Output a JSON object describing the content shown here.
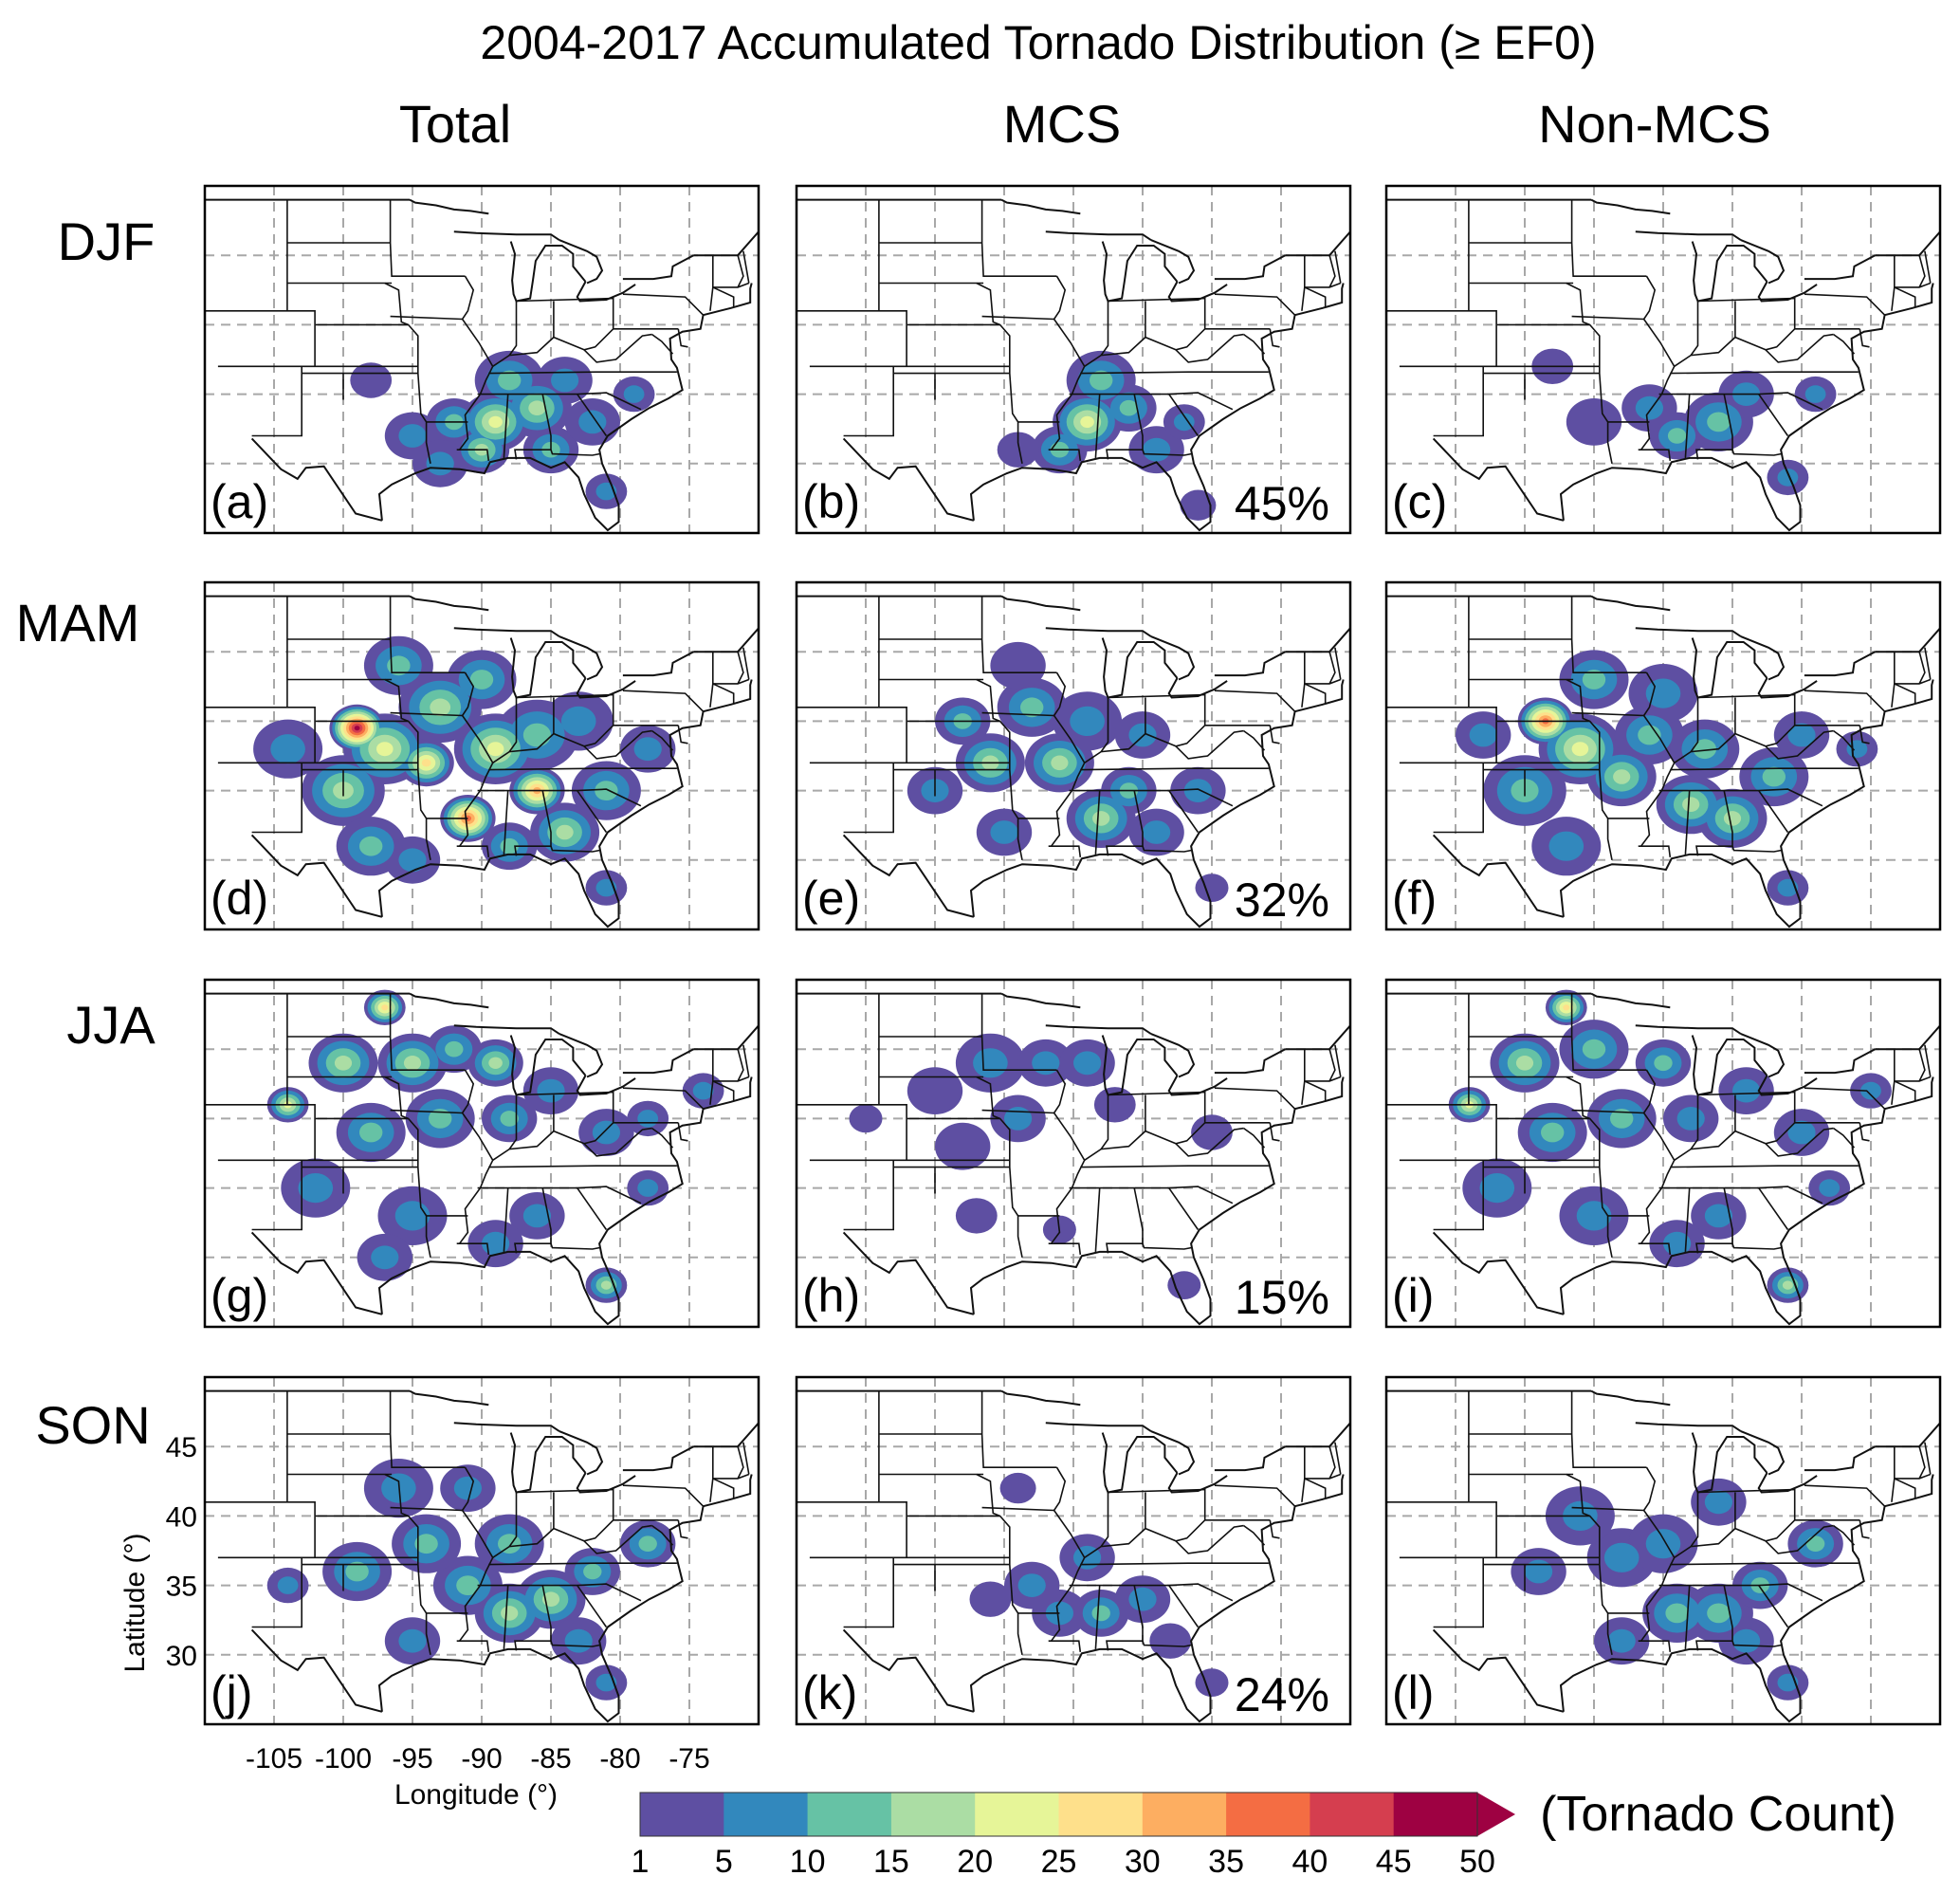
{
  "title": "2004-2017 Accumulated Tornado Distribution (≥ EF0)",
  "columns": [
    "Total",
    "MCS",
    "Non-MCS"
  ],
  "rows": [
    "DJF",
    "MAM",
    "JJA",
    "SON"
  ],
  "panels": [
    {
      "label": "(a)",
      "season": "DJF",
      "category": "Total",
      "pct": ""
    },
    {
      "label": "(b)",
      "season": "DJF",
      "category": "MCS",
      "pct": "45%"
    },
    {
      "label": "(c)",
      "season": "DJF",
      "category": "Non-MCS",
      "pct": ""
    },
    {
      "label": "(d)",
      "season": "MAM",
      "category": "Total",
      "pct": ""
    },
    {
      "label": "(e)",
      "season": "MAM",
      "category": "MCS",
      "pct": "32%"
    },
    {
      "label": "(f)",
      "season": "MAM",
      "category": "Non-MCS",
      "pct": ""
    },
    {
      "label": "(g)",
      "season": "JJA",
      "category": "Total",
      "pct": ""
    },
    {
      "label": "(h)",
      "season": "JJA",
      "category": "MCS",
      "pct": "15%"
    },
    {
      "label": "(i)",
      "season": "JJA",
      "category": "Non-MCS",
      "pct": ""
    },
    {
      "label": "(j)",
      "season": "SON",
      "category": "Total",
      "pct": ""
    },
    {
      "label": "(k)",
      "season": "SON",
      "category": "MCS",
      "pct": "24%"
    },
    {
      "label": "(l)",
      "season": "SON",
      "category": "Non-MCS",
      "pct": ""
    }
  ],
  "chart_data": {
    "type": "heatmap",
    "title": "2004-2017 Accumulated Tornado Distribution (≥ EF0)",
    "xlabel": "Longitude (°)",
    "ylabel": "Latitude (°)",
    "x_ticks": [
      -105,
      -100,
      -95,
      -90,
      -85,
      -80,
      -75
    ],
    "y_ticks": [
      45,
      40,
      35,
      30
    ],
    "x_range": [
      -110,
      -70
    ],
    "y_range": [
      25,
      50
    ],
    "grid": true,
    "colorbar": {
      "label": "(Tornado Count)",
      "levels": [
        1,
        5,
        10,
        15,
        20,
        25,
        30,
        35,
        40,
        45,
        50
      ],
      "colors": [
        "#5e4fa2",
        "#3288bd",
        "#66c2a5",
        "#abdda4",
        "#e6f598",
        "#fee08b",
        "#fdae61",
        "#f46d43",
        "#d53e4f",
        "#9e0142"
      ],
      "extend": "max"
    },
    "mcs_fraction_percent": {
      "DJF": 45,
      "MAM": 32,
      "JJA": 15,
      "SON": 24
    },
    "hotspots": [
      {
        "panel": "(a)",
        "blobs": [
          [
            -89,
            33,
            2.5,
            5
          ],
          [
            -86,
            34,
            2.5,
            4
          ],
          [
            -90,
            31,
            2,
            4
          ],
          [
            -85,
            31,
            2,
            3
          ],
          [
            -92,
            33,
            2,
            3
          ],
          [
            -88,
            36,
            2.5,
            3
          ],
          [
            -82,
            33,
            2,
            2
          ],
          [
            -95,
            32,
            2,
            2
          ],
          [
            -81,
            28,
            1.5,
            2
          ],
          [
            -93,
            30,
            2,
            2
          ],
          [
            -84,
            36,
            2,
            2
          ],
          [
            -79,
            35,
            1.5,
            2
          ],
          [
            -98,
            36,
            1.5,
            1
          ]
        ]
      },
      {
        "panel": "(b)",
        "blobs": [
          [
            -89,
            33,
            2.5,
            5
          ],
          [
            -86,
            34,
            2,
            3
          ],
          [
            -91,
            31,
            2,
            3
          ],
          [
            -88,
            36,
            2.5,
            3
          ],
          [
            -84,
            31,
            2,
            2
          ],
          [
            -82,
            33,
            1.5,
            2
          ],
          [
            -94,
            31,
            1.5,
            1
          ],
          [
            -81,
            27,
            1.3,
            1
          ]
        ]
      },
      {
        "panel": "(c)",
        "blobs": [
          [
            -86,
            33,
            2.5,
            3
          ],
          [
            -89,
            32,
            2,
            3
          ],
          [
            -84,
            35,
            2,
            2
          ],
          [
            -91,
            34,
            2,
            2
          ],
          [
            -81,
            29,
            1.5,
            2
          ],
          [
            -79,
            35,
            1.5,
            2
          ],
          [
            -95,
            33,
            2,
            1
          ],
          [
            -98,
            37,
            1.5,
            1
          ]
        ]
      },
      {
        "panel": "(d)",
        "blobs": [
          [
            -99,
            39.5,
            2,
            10
          ],
          [
            -97,
            38,
            3,
            5
          ],
          [
            -94,
            37,
            2,
            6
          ],
          [
            -91,
            33,
            2,
            8
          ],
          [
            -86,
            35,
            2,
            7
          ],
          [
            -89,
            38,
            3,
            5
          ],
          [
            -93,
            41,
            3,
            4
          ],
          [
            -100,
            35,
            3,
            4
          ],
          [
            -84,
            32,
            2.5,
            4
          ],
          [
            -86,
            39,
            3,
            3
          ],
          [
            -81,
            35,
            2.5,
            3
          ],
          [
            -96,
            44,
            2.5,
            3
          ],
          [
            -90,
            43,
            2.5,
            3
          ],
          [
            -83,
            40,
            2.5,
            2
          ],
          [
            -98,
            31,
            2.5,
            3
          ],
          [
            -104,
            38,
            2.5,
            2
          ],
          [
            -95,
            30,
            2,
            2
          ],
          [
            -78,
            38,
            2,
            2
          ],
          [
            -81,
            28,
            1.5,
            2
          ],
          [
            -88,
            31,
            2,
            3
          ]
        ]
      },
      {
        "panel": "(e)",
        "blobs": [
          [
            -96,
            37,
            2.5,
            4
          ],
          [
            -91,
            37,
            2.5,
            4
          ],
          [
            -88,
            33,
            2.5,
            4
          ],
          [
            -86,
            35,
            2,
            3
          ],
          [
            -93,
            41,
            2.5,
            3
          ],
          [
            -98,
            40,
            2,
            3
          ],
          [
            -89,
            40,
            2.5,
            2
          ],
          [
            -84,
            32,
            2,
            2
          ],
          [
            -81,
            35,
            2,
            2
          ],
          [
            -100,
            35,
            2,
            2
          ],
          [
            -95,
            32,
            2,
            2
          ],
          [
            -85,
            39,
            2,
            2
          ],
          [
            -94,
            44,
            2,
            1
          ],
          [
            -80,
            28,
            1.2,
            1
          ]
        ]
      },
      {
        "panel": "(f)",
        "blobs": [
          [
            -98.5,
            40,
            2,
            8
          ],
          [
            -96,
            38,
            3,
            5
          ],
          [
            -93,
            36,
            2.5,
            4
          ],
          [
            -88,
            34,
            2.5,
            4
          ],
          [
            -85,
            33,
            2.5,
            4
          ],
          [
            -91,
            39,
            2.5,
            3
          ],
          [
            -100,
            35,
            3,
            3
          ],
          [
            -95,
            43,
            2.5,
            3
          ],
          [
            -87,
            38,
            2.5,
            3
          ],
          [
            -82,
            36,
            2.5,
            3
          ],
          [
            -90,
            42,
            2.5,
            2
          ],
          [
            -103,
            39,
            2,
            2
          ],
          [
            -97,
            31,
            2.5,
            2
          ],
          [
            -80,
            39,
            2,
            2
          ],
          [
            -81,
            28,
            1.5,
            2
          ],
          [
            -76,
            38,
            1.5,
            2
          ]
        ]
      },
      {
        "panel": "(g)",
        "blobs": [
          [
            -97,
            48,
            1.5,
            6
          ],
          [
            -104,
            41,
            1.5,
            5
          ],
          [
            -100,
            44,
            2.5,
            4
          ],
          [
            -95,
            44,
            2.5,
            4
          ],
          [
            -92,
            45,
            2,
            3
          ],
          [
            -89,
            44,
            2,
            4
          ],
          [
            -98,
            39,
            2.5,
            3
          ],
          [
            -93,
            40,
            2.5,
            3
          ],
          [
            -88,
            40,
            2,
            3
          ],
          [
            -85,
            42,
            2,
            2
          ],
          [
            -81,
            39,
            2,
            2
          ],
          [
            -78,
            40,
            1.5,
            2
          ],
          [
            -74,
            42,
            1.5,
            2
          ],
          [
            -81,
            28,
            1.5,
            4
          ],
          [
            -95,
            33,
            2.5,
            2
          ],
          [
            -102,
            35,
            2.5,
            2
          ],
          [
            -86,
            33,
            2,
            2
          ],
          [
            -89,
            31,
            2,
            2
          ],
          [
            -97,
            30,
            2,
            2
          ],
          [
            -78,
            35,
            1.5,
            2
          ]
        ]
      },
      {
        "panel": "(h)",
        "blobs": [
          [
            -96,
            44,
            2.5,
            2
          ],
          [
            -92,
            44,
            2,
            2
          ],
          [
            -100,
            42,
            2,
            1
          ],
          [
            -89,
            44,
            2,
            2
          ],
          [
            -94,
            40,
            2,
            2
          ],
          [
            -98,
            38,
            2,
            1
          ],
          [
            -87,
            41,
            1.5,
            1
          ],
          [
            -105,
            40,
            1.2,
            1
          ],
          [
            -91,
            32,
            1.2,
            1
          ],
          [
            -80,
            39,
            1.5,
            1
          ],
          [
            -97,
            33,
            1.5,
            1
          ],
          [
            -82,
            28,
            1.2,
            1
          ]
        ]
      },
      {
        "panel": "(i)",
        "blobs": [
          [
            -97,
            48,
            1.5,
            6
          ],
          [
            -104,
            41,
            1.5,
            5
          ],
          [
            -100,
            44,
            2.5,
            4
          ],
          [
            -95,
            45,
            2.5,
            3
          ],
          [
            -90,
            44,
            2,
            3
          ],
          [
            -98,
            39,
            2.5,
            3
          ],
          [
            -93,
            40,
            2.5,
            3
          ],
          [
            -88,
            40,
            2,
            2
          ],
          [
            -84,
            42,
            2,
            2
          ],
          [
            -80,
            39,
            2,
            2
          ],
          [
            -75,
            42,
            1.5,
            2
          ],
          [
            -81,
            28,
            1.5,
            4
          ],
          [
            -95,
            33,
            2.5,
            2
          ],
          [
            -102,
            35,
            2.5,
            2
          ],
          [
            -86,
            33,
            2,
            2
          ],
          [
            -89,
            31,
            2,
            2
          ],
          [
            -78,
            35,
            1.5,
            2
          ]
        ]
      },
      {
        "panel": "(j)",
        "blobs": [
          [
            -88,
            33,
            2.5,
            4
          ],
          [
            -85,
            34,
            2.5,
            4
          ],
          [
            -91,
            35,
            2.5,
            3
          ],
          [
            -94,
            38,
            2.5,
            3
          ],
          [
            -96,
            42,
            2.5,
            2
          ],
          [
            -99,
            36,
            2.5,
            3
          ],
          [
            -88,
            38,
            2.5,
            3
          ],
          [
            -82,
            36,
            2,
            3
          ],
          [
            -78,
            38,
            2,
            3
          ],
          [
            -83,
            31,
            2,
            2
          ],
          [
            -95,
            31,
            2,
            2
          ],
          [
            -81,
            28,
            1.5,
            2
          ],
          [
            -104,
            35,
            1.5,
            2
          ],
          [
            -91,
            42,
            2,
            2
          ]
        ]
      },
      {
        "panel": "(k)",
        "blobs": [
          [
            -88,
            33,
            2,
            3
          ],
          [
            -91,
            33,
            2,
            2
          ],
          [
            -85,
            34,
            2,
            2
          ],
          [
            -93,
            35,
            2,
            2
          ],
          [
            -89,
            37,
            2,
            2
          ],
          [
            -83,
            31,
            1.5,
            1
          ],
          [
            -80,
            28,
            1.2,
            1
          ],
          [
            -94,
            42,
            1.3,
            1
          ],
          [
            -96,
            34,
            1.5,
            1
          ]
        ]
      },
      {
        "panel": "(l)",
        "blobs": [
          [
            -86,
            33,
            2.5,
            3
          ],
          [
            -89,
            33,
            2.5,
            3
          ],
          [
            -83,
            35,
            2,
            3
          ],
          [
            -79,
            38,
            2,
            3
          ],
          [
            -93,
            37,
            2.5,
            2
          ],
          [
            -96,
            40,
            2.5,
            2
          ],
          [
            -90,
            38,
            2.5,
            2
          ],
          [
            -84,
            31,
            2,
            2
          ],
          [
            -81,
            28,
            1.5,
            2
          ],
          [
            -99,
            36,
            2,
            2
          ],
          [
            -93,
            31,
            2,
            2
          ],
          [
            -86,
            41,
            2,
            2
          ]
        ]
      }
    ]
  }
}
